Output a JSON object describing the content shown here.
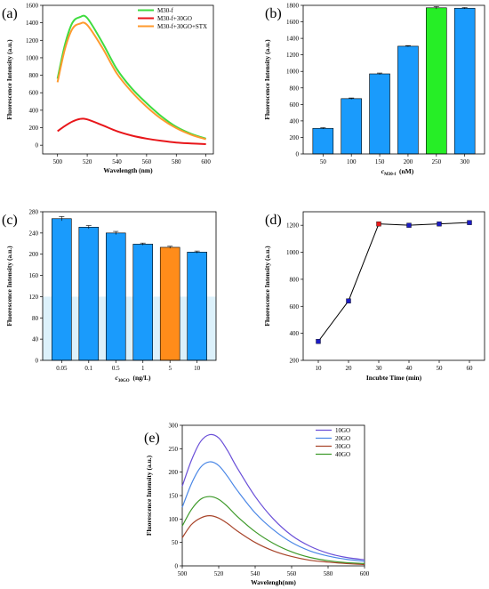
{
  "chart_data": [
    {
      "id": "a",
      "type": "line",
      "panel_label": "(a)",
      "xlabel": "Wavelength (nm)",
      "ylabel": "Fluorescence Intensity (a.u.)",
      "xlim": [
        490,
        605
      ],
      "ylim": [
        -100,
        1600
      ],
      "xticks": [
        500,
        520,
        540,
        560,
        580,
        600
      ],
      "yticks": [
        0,
        200,
        400,
        600,
        800,
        1000,
        1200,
        1400,
        1600
      ],
      "legend_position": "top-right",
      "x": [
        500,
        505,
        510,
        515,
        520,
        530,
        540,
        550,
        560,
        570,
        580,
        590,
        600
      ],
      "series": [
        {
          "name": "M30-f",
          "color": "#3fdc3f",
          "values": [
            760,
            1150,
            1400,
            1465,
            1455,
            1180,
            870,
            650,
            480,
            330,
            210,
            130,
            75
          ]
        },
        {
          "name": "M30-f+30GO",
          "color": "#e8161a",
          "values": [
            160,
            220,
            270,
            300,
            295,
            230,
            160,
            110,
            75,
            50,
            30,
            20,
            12
          ]
        },
        {
          "name": "M30-f+30GO+STX",
          "color": "#ff9a2e",
          "values": [
            720,
            1100,
            1330,
            1390,
            1375,
            1120,
            820,
            610,
            440,
            300,
            195,
            120,
            68
          ]
        }
      ]
    },
    {
      "id": "b",
      "type": "bar",
      "panel_label": "(b)",
      "xlabel_main": "c",
      "xlabel_sub": "M30-f",
      "xlabel_rest": "(nM)",
      "ylabel": "Fluorescence Intensity (a.u.)",
      "ylim": [
        0,
        1800
      ],
      "yticks": [
        0,
        200,
        400,
        600,
        800,
        1000,
        1200,
        1400,
        1600,
        1800
      ],
      "categories": [
        "50",
        "100",
        "150",
        "200",
        "250",
        "300"
      ],
      "values": [
        310,
        670,
        970,
        1305,
        1770,
        1765
      ],
      "errors": [
        8,
        8,
        10,
        8,
        15,
        8
      ],
      "colors": [
        "#1a9bfc",
        "#1a9bfc",
        "#1a9bfc",
        "#1a9bfc",
        "#26ee26",
        "#1a9bfc"
      ]
    },
    {
      "id": "c",
      "type": "bar",
      "panel_label": "(c)",
      "xlabel_main": "c",
      "xlabel_sub": "30GO",
      "xlabel_rest": "(ng/L)",
      "ylabel": "Fluorescence Intensity (a.u.)",
      "ylim": [
        0,
        280
      ],
      "yticks": [
        0,
        40,
        80,
        120,
        160,
        200,
        240,
        280
      ],
      "categories": [
        "0.05",
        "0.1",
        "0.5",
        "1",
        "5",
        "10"
      ],
      "values": [
        267,
        251,
        240,
        219,
        213,
        204
      ],
      "errors": [
        4,
        3,
        3,
        2,
        2,
        2
      ],
      "colors": [
        "#1a9bfc",
        "#1a9bfc",
        "#1a9bfc",
        "#1a9bfc",
        "#ff8c1a",
        "#1a9bfc"
      ]
    },
    {
      "id": "d",
      "type": "line",
      "panel_label": "(d)",
      "xlabel": "Incubte Time (min)",
      "ylabel": "Fluorescence Intensity (a.u.)",
      "xlim": [
        5,
        65
      ],
      "ylim": [
        200,
        1300
      ],
      "xticks": [
        10,
        20,
        30,
        40,
        50,
        60
      ],
      "yticks": [
        200,
        400,
        600,
        800,
        1000,
        1200
      ],
      "x": [
        10,
        20,
        30,
        40,
        50,
        60
      ],
      "values": [
        340,
        640,
        1210,
        1200,
        1210,
        1220
      ],
      "marker_colors": [
        "#1c1cc4",
        "#1c1cc4",
        "#e81a1a",
        "#1c1cc4",
        "#1c1cc4",
        "#1c1cc4"
      ]
    },
    {
      "id": "e",
      "type": "line",
      "panel_label": "(e)",
      "xlabel": "Wavelengh(nm)",
      "ylabel": "Fluorescence Intensity (a.u.)",
      "xlim": [
        500,
        600
      ],
      "ylim": [
        0,
        300
      ],
      "xticks": [
        500,
        520,
        540,
        560,
        580,
        600
      ],
      "yticks": [
        0,
        50,
        100,
        150,
        200,
        250,
        300
      ],
      "legend_position": "top-right",
      "x": [
        500,
        505,
        510,
        515,
        520,
        525,
        530,
        540,
        550,
        560,
        570,
        580,
        590,
        600
      ],
      "series": [
        {
          "name": "10GO",
          "color": "#6a4fd8",
          "values": [
            170,
            225,
            265,
            280,
            273,
            245,
            210,
            148,
            100,
            65,
            42,
            27,
            18,
            13
          ]
        },
        {
          "name": "20GO",
          "color": "#4a87e6",
          "values": [
            125,
            175,
            210,
            222,
            214,
            190,
            162,
            113,
            77,
            50,
            32,
            21,
            14,
            10
          ]
        },
        {
          "name": "30GO",
          "color": "#a8442a",
          "values": [
            60,
            88,
            102,
            107,
            102,
            90,
            75,
            50,
            32,
            20,
            12,
            8,
            5,
            3
          ]
        },
        {
          "name": "40GO",
          "color": "#3e9a2a",
          "values": [
            85,
            120,
            142,
            148,
            142,
            126,
            106,
            73,
            48,
            30,
            18,
            11,
            7,
            5
          ]
        }
      ]
    }
  ]
}
